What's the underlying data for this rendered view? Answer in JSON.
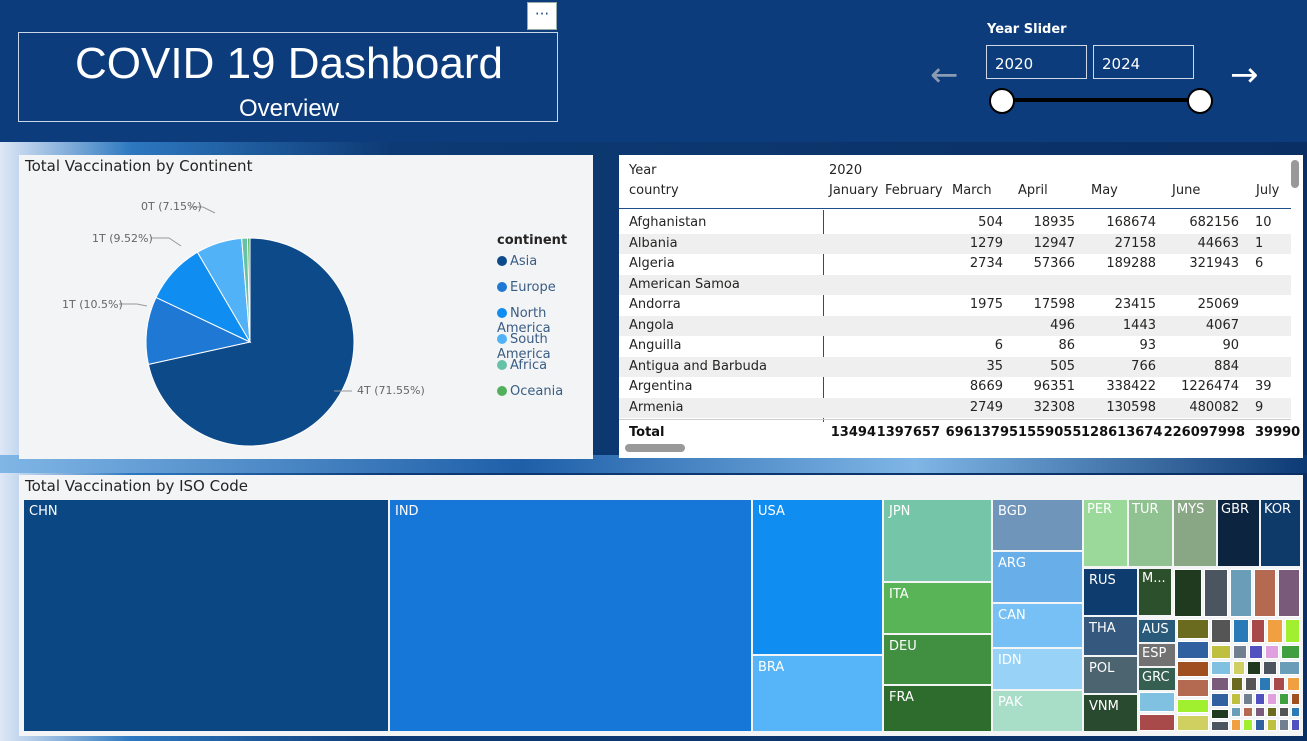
{
  "header": {
    "title": "COVID 19 Dashboard",
    "subtitle": "Overview",
    "more_label": "···"
  },
  "slider": {
    "label": "Year Slider",
    "start": "2020",
    "end": "2024",
    "prev_icon": "arrow-left-icon",
    "next_icon": "arrow-right-icon"
  },
  "pie": {
    "title": "Total Vaccination by Continent",
    "legend_title": "continent",
    "legend": [
      "Asia",
      "Europe",
      "North America",
      "South America",
      "Africa",
      "Oceania"
    ],
    "labels": [
      "4T (71.55%)",
      "1T (10.5%)",
      "1T (9.52%)",
      "0T (7.15%)"
    ],
    "colors": [
      "#0d4a8a",
      "#1f78d4",
      "#0f8df0",
      "#52b2f7",
      "#66c2a5",
      "#52b05c"
    ]
  },
  "chart_data": {
    "type": "pie",
    "title": "Total Vaccination by Continent",
    "categories": [
      "Asia",
      "Europe",
      "North America",
      "South America",
      "Africa",
      "Oceania"
    ],
    "values": [
      71.55,
      10.5,
      9.52,
      7.15,
      0.9,
      0.38
    ],
    "unit": "percent",
    "legend": "right"
  },
  "table": {
    "year": "2020",
    "year_header": "Year",
    "country_header": "country",
    "months": [
      "January",
      "February",
      "March",
      "April",
      "May",
      "June",
      "July"
    ],
    "rows": [
      [
        "Afghanistan",
        "",
        "",
        "504",
        "18935",
        "168674",
        "682156",
        "10"
      ],
      [
        "Albania",
        "",
        "",
        "1279",
        "12947",
        "27158",
        "44663",
        "1"
      ],
      [
        "Algeria",
        "",
        "",
        "2734",
        "57366",
        "189288",
        "321943",
        "6"
      ],
      [
        "American Samoa",
        "",
        "",
        "",
        "",
        "",
        "",
        ""
      ],
      [
        "Andorra",
        "",
        "",
        "1975",
        "17598",
        "23415",
        "25069",
        ""
      ],
      [
        "Angola",
        "",
        "",
        "",
        "496",
        "1443",
        "4067",
        ""
      ],
      [
        "Anguilla",
        "",
        "",
        "6",
        "86",
        "93",
        "90",
        ""
      ],
      [
        "Antigua and Barbuda",
        "",
        "",
        "35",
        "505",
        "766",
        "884",
        ""
      ],
      [
        "Argentina",
        "",
        "",
        "8669",
        "96351",
        "338422",
        "1226474",
        "39"
      ],
      [
        "Armenia",
        "",
        "",
        "2749",
        "32308",
        "130598",
        "480082",
        "9"
      ]
    ],
    "total_label": "Total",
    "totals": [
      "13494",
      "1397657",
      "6961379",
      "51559055",
      "128613674",
      "226097998",
      "39990"
    ]
  },
  "treemap": {
    "title": "Total Vaccination by ISO Code",
    "cells": [
      {
        "label": "CHN",
        "color": "#0b4782"
      },
      {
        "label": "IND",
        "color": "#1677d8"
      },
      {
        "label": "USA",
        "color": "#108df0"
      },
      {
        "label": "BRA",
        "color": "#55b5f8"
      },
      {
        "label": "JPN",
        "color": "#75c6a9"
      },
      {
        "label": "ITA",
        "color": "#58b456"
      },
      {
        "label": "DEU",
        "color": "#418f41"
      },
      {
        "label": "FRA",
        "color": "#2e6c2e"
      },
      {
        "label": "BGD",
        "color": "#6f95ba"
      },
      {
        "label": "ARG",
        "color": "#68aee8"
      },
      {
        "label": "CAN",
        "color": "#76c0f5"
      },
      {
        "label": "IDN",
        "color": "#98d3f7"
      },
      {
        "label": "PAK",
        "color": "#a8ddc8"
      },
      {
        "label": "PER",
        "color": "#9bd99b"
      },
      {
        "label": "TUR",
        "color": "#8fc191"
      },
      {
        "label": "MYS",
        "color": "#89a685"
      },
      {
        "label": "GBR",
        "color": "#0c2440"
      },
      {
        "label": "KOR",
        "color": "#0e3a6a"
      },
      {
        "label": "RUS",
        "color": "#0e3c6e"
      },
      {
        "label": "M...",
        "color": "#2c4f2c"
      },
      {
        "label": "THA",
        "color": "#34587e"
      },
      {
        "label": "AUS",
        "color": "#2a5a7a"
      },
      {
        "label": "ESP",
        "color": "#727272"
      },
      {
        "label": "POL",
        "color": "#4b6470"
      },
      {
        "label": "GRC",
        "color": "#355f50"
      },
      {
        "label": "VNM",
        "color": "#2a4a30"
      }
    ]
  }
}
